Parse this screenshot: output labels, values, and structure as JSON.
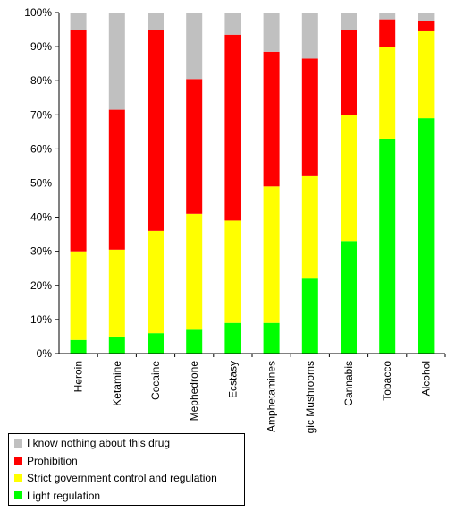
{
  "chart_data": {
    "type": "bar",
    "stacked": true,
    "percent": true,
    "title": "",
    "xlabel": "",
    "ylabel": "",
    "ylim": [
      0,
      100
    ],
    "yticks": [
      "0%",
      "10%",
      "20%",
      "30%",
      "40%",
      "50%",
      "60%",
      "70%",
      "80%",
      "90%",
      "100%"
    ],
    "grid": false,
    "legend_position": "bottom-left",
    "categories": [
      "Heroin",
      "Ketamine",
      "Cocaine",
      "Mephedrone",
      "Ecstasy",
      "Amphetamines",
      "Magic Mushrooms",
      "Cannabis",
      "Tobacco",
      "Alcohol"
    ],
    "series": [
      {
        "name": "Light regulation",
        "color": "#00ff00",
        "values": [
          4,
          5,
          6,
          7,
          9,
          9,
          22,
          33,
          63,
          69
        ]
      },
      {
        "name": "Strict government control and regulation",
        "color": "#ffff00",
        "values": [
          26,
          25.5,
          30,
          34,
          30,
          40,
          30,
          37,
          27,
          25.5
        ]
      },
      {
        "name": "Prohibition",
        "color": "#ff0000",
        "values": [
          65,
          41,
          59,
          39.5,
          54.5,
          39.5,
          34.5,
          25,
          8,
          3
        ]
      },
      {
        "name": "I know nothing about this drug",
        "color": "#c0c0c0",
        "values": [
          5,
          28.5,
          5,
          19.5,
          6.5,
          11.5,
          13.5,
          5,
          2,
          2.5
        ]
      }
    ]
  }
}
